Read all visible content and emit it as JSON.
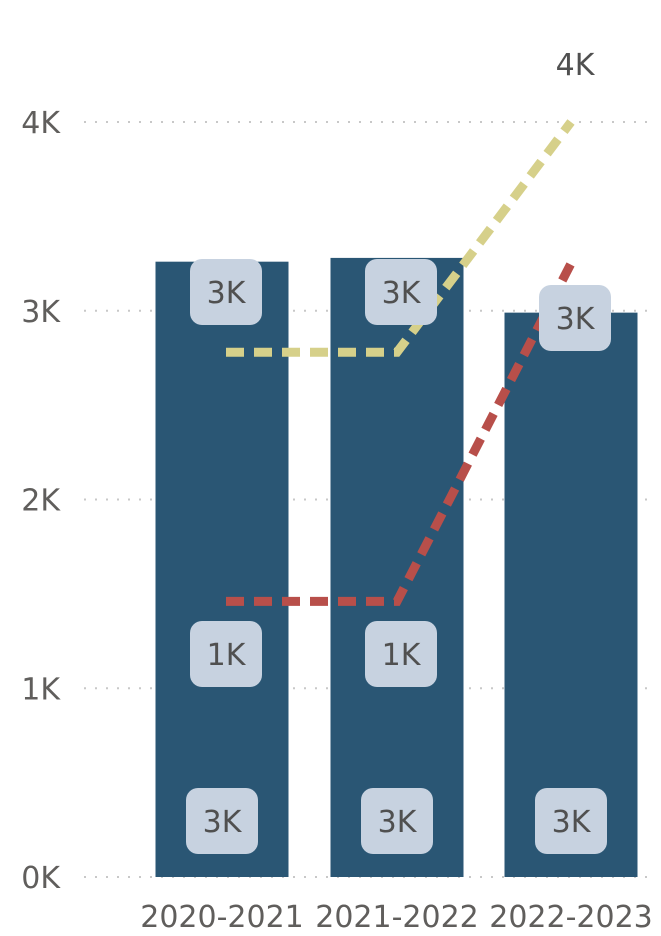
{
  "chart_data": {
    "type": "bar",
    "categories": [
      "2020-2021",
      "2021-2022",
      "2022-2023"
    ],
    "y_ticks": [
      "0K",
      "1K",
      "2K",
      "3K",
      "4K"
    ],
    "ylim": [
      0,
      4000
    ],
    "grid": true,
    "bar_series": {
      "values": [
        3260,
        3280,
        2990
      ],
      "data_labels": [
        "3K",
        "3K",
        "3K"
      ]
    },
    "line_series": [
      {
        "values": [
          2780,
          2780,
          4000
        ],
        "data_labels": [
          "3K",
          "3K",
          "4K"
        ]
      },
      {
        "values": [
          1460,
          1460,
          3250
        ],
        "data_labels": [
          "1K",
          "1K",
          "3K"
        ]
      }
    ],
    "base_labels": [
      "3K",
      "3K",
      "3K"
    ],
    "colors": {
      "bar": "#2a5674",
      "line_1": "#d6d08a",
      "line_2": "#b84f4a",
      "label_box": "#c7d2e0",
      "grid": "#c8c8c8",
      "axis_text": "#605e5c"
    }
  }
}
